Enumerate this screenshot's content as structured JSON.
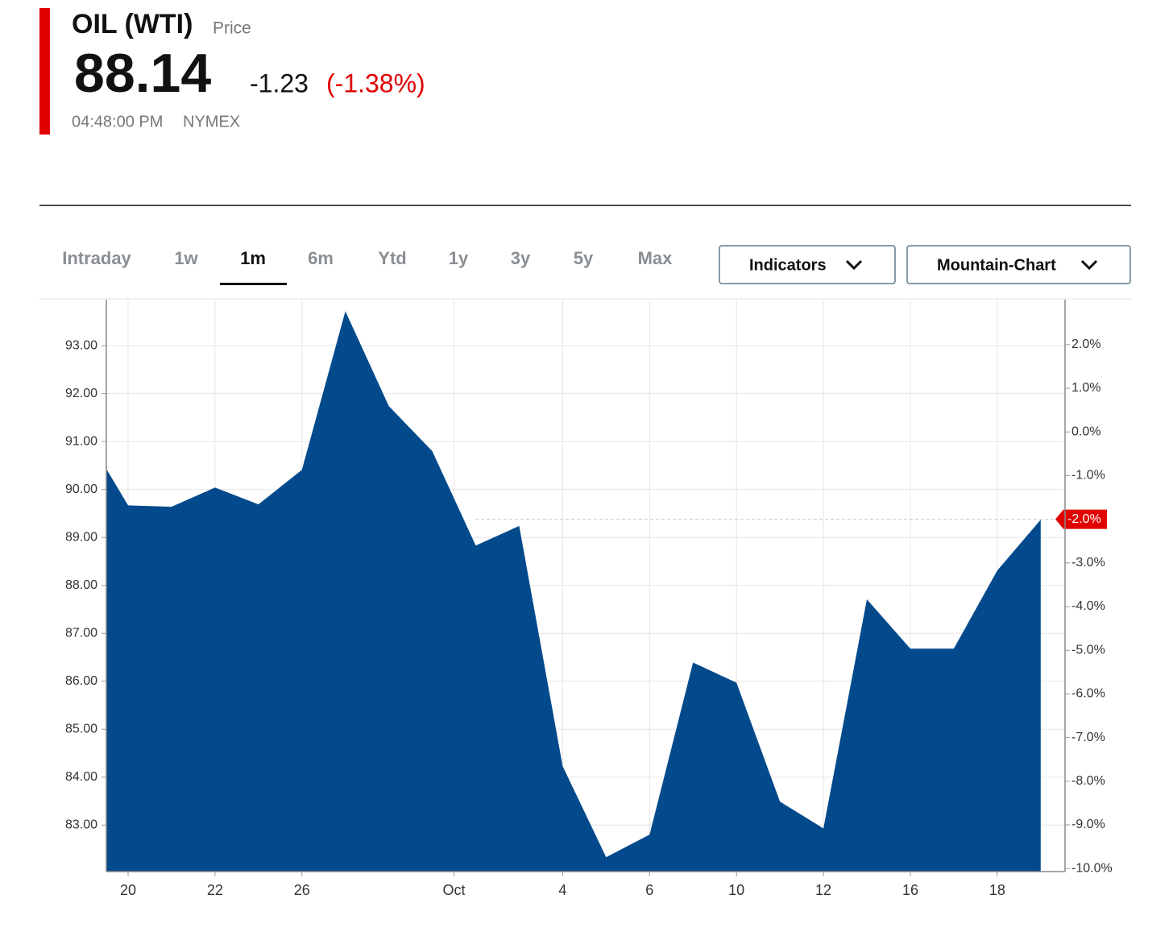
{
  "header": {
    "name": "OIL (WTI)",
    "kind": "Price",
    "price": "88.14",
    "change": "-1.23",
    "change_pct": "(-1.38%)",
    "time": "04:48:00 PM",
    "exchange": "NYMEX"
  },
  "tabs": {
    "items": [
      "Intraday",
      "1w",
      "1m",
      "6m",
      "Ytd",
      "1y",
      "3y",
      "5y",
      "Max"
    ],
    "active": 2
  },
  "buttons": [
    "Indicators",
    "Mountain-Chart"
  ],
  "chart_data": {
    "type": "area",
    "color": "#024a8c",
    "grid": true,
    "x": [
      -0.5,
      0,
      1,
      2,
      3,
      4,
      5,
      6,
      7,
      8,
      9,
      10,
      11,
      12,
      13,
      14,
      15,
      16,
      17,
      18,
      19,
      20,
      21
    ],
    "values": [
      90.43,
      89.67,
      89.64,
      90.04,
      89.69,
      90.41,
      93.72,
      91.74,
      90.8,
      88.83,
      89.24,
      84.23,
      82.33,
      82.8,
      86.39,
      85.97,
      83.49,
      82.93,
      87.71,
      86.68,
      86.68,
      88.31,
      89.37
    ],
    "xlim": [
      -0.5,
      21.56
    ],
    "xticks": [
      {
        "value": 0,
        "label": "20"
      },
      {
        "value": 2,
        "label": "22"
      },
      {
        "value": 4,
        "label": "26"
      },
      {
        "value": 7.5,
        "label": "Oct"
      },
      {
        "value": 10,
        "label": "4"
      },
      {
        "value": 12,
        "label": "6"
      },
      {
        "value": 14,
        "label": "10"
      },
      {
        "value": 16,
        "label": "12"
      },
      {
        "value": 18,
        "label": "16"
      },
      {
        "value": 20,
        "label": "18"
      }
    ],
    "ylim": [
      82.03,
      93.96
    ],
    "yticks": [
      {
        "value": 83,
        "label": "83.00"
      },
      {
        "value": 84,
        "label": "84.00"
      },
      {
        "value": 85,
        "label": "85.00"
      },
      {
        "value": 86,
        "label": "86.00"
      },
      {
        "value": 87,
        "label": "87.00"
      },
      {
        "value": 88,
        "label": "88.00"
      },
      {
        "value": 89,
        "label": "89.00"
      },
      {
        "value": 90,
        "label": "90.00"
      },
      {
        "value": 91,
        "label": "91.00"
      },
      {
        "value": 92,
        "label": "92.00"
      },
      {
        "value": 93,
        "label": "93.00"
      }
    ],
    "y2lim": [
      -10.07,
      3.03
    ],
    "y2ticks": [
      {
        "value": -10,
        "label": "-10.0%"
      },
      {
        "value": -9,
        "label": "-9.0%"
      },
      {
        "value": -8,
        "label": "-8.0%"
      },
      {
        "value": -7,
        "label": "-7.0%"
      },
      {
        "value": -6,
        "label": "-6.0%"
      },
      {
        "value": -5,
        "label": "-5.0%"
      },
      {
        "value": -4,
        "label": "-4.0%"
      },
      {
        "value": -3,
        "label": "-3.0%"
      },
      {
        "value": -1,
        "label": "-1.0%"
      },
      {
        "value": 0,
        "label": "0.0%"
      },
      {
        "value": 1,
        "label": "1.0%"
      },
      {
        "value": 2,
        "label": "2.0%"
      }
    ],
    "current_marker": {
      "value": -2,
      "label": "-2.0%"
    }
  }
}
